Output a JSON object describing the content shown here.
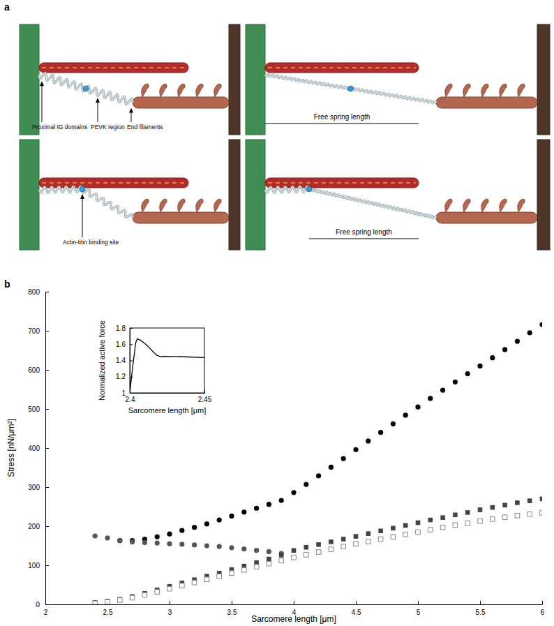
{
  "diagram": {
    "label": "a",
    "panels": [
      {
        "annotations": [
          "Proximal IG domains",
          "PEVK region",
          "End filaments"
        ]
      },
      {
        "annotations": [
          "Free spring length"
        ]
      },
      {
        "annotations": [
          "Actin-titin binding site"
        ]
      },
      {
        "annotations": [
          "Free spring length"
        ]
      }
    ]
  },
  "chart_data": [
    {
      "type": "scatter",
      "annotations": [
        "b"
      ],
      "x_label": "Sarcomere length [μm]",
      "y_label": "Stress [nN/μm²]",
      "xlim": [
        2,
        6
      ],
      "xticks": [
        2,
        2.5,
        3,
        3.5,
        4,
        4.5,
        5,
        5.5,
        6
      ],
      "ylim": [
        0,
        800
      ],
      "yticks": [
        0,
        100,
        200,
        300,
        400,
        500,
        600,
        700,
        800
      ],
      "grid": false,
      "series": [
        {
          "color": "#000000",
          "marker": "circle",
          "x": [
            2.6,
            2.7,
            2.8,
            2.9,
            3.0,
            3.1,
            3.2,
            3.3,
            3.4,
            3.5,
            3.6,
            3.7,
            3.8,
            3.9,
            4.0,
            4.1,
            4.2,
            4.3,
            4.4,
            4.5,
            4.6,
            4.7,
            4.8,
            4.9,
            5.0,
            5.1,
            5.2,
            5.3,
            5.4,
            5.5,
            5.6,
            5.7,
            5.8,
            5.9,
            6.0
          ],
          "values": [
            163,
            163,
            167,
            173,
            180,
            189,
            197,
            206,
            216,
            226,
            236,
            246,
            256,
            266,
            286,
            307,
            329,
            351,
            373,
            396,
            418,
            440,
            462,
            484,
            505,
            527,
            548,
            569,
            590,
            610,
            631,
            652,
            673,
            695,
            716
          ]
        },
        {
          "color": "#555555",
          "marker": "circle",
          "x": [
            2.4,
            2.5,
            2.6,
            2.7,
            2.8,
            2.9,
            3.0,
            3.1,
            3.2,
            3.3,
            3.4,
            3.5,
            3.6,
            3.7,
            3.8,
            3.9
          ],
          "values": [
            175,
            170,
            163,
            160,
            158,
            157,
            155,
            154,
            152,
            150,
            148,
            145,
            142,
            138,
            135,
            130
          ]
        },
        {
          "color": "#444444",
          "marker": "square",
          "x": [
            2.4,
            2.5,
            2.6,
            2.7,
            2.8,
            2.9,
            3.0,
            3.1,
            3.2,
            3.3,
            3.4,
            3.5,
            3.6,
            3.7,
            3.8,
            3.9,
            4.0,
            4.1,
            4.2,
            4.3,
            4.4,
            4.5,
            4.6,
            4.7,
            4.8,
            4.9,
            5.0,
            5.1,
            5.2,
            5.3,
            5.4,
            5.5,
            5.6,
            5.7,
            5.8,
            5.9,
            6.0
          ],
          "values": [
            5,
            8,
            13,
            20,
            28,
            37,
            46,
            55,
            63,
            72,
            80,
            89,
            98,
            107,
            116,
            126,
            138,
            146,
            153,
            160,
            167,
            174,
            181,
            188,
            195,
            202,
            209,
            216,
            222,
            229,
            235,
            242,
            248,
            254,
            260,
            265,
            270
          ]
        },
        {
          "color": "#888888",
          "marker": "open-square",
          "x": [
            2.4,
            2.5,
            2.6,
            2.7,
            2.8,
            2.9,
            3.0,
            3.1,
            3.2,
            3.3,
            3.4,
            3.5,
            3.6,
            3.7,
            3.8,
            3.9,
            4.0,
            4.1,
            4.2,
            4.3,
            4.4,
            4.5,
            4.6,
            4.7,
            4.8,
            4.9,
            5.0,
            5.1,
            5.2,
            5.3,
            5.4,
            5.5,
            5.6,
            5.7,
            5.8,
            5.9,
            6.0
          ],
          "values": [
            3,
            6,
            11,
            17,
            24,
            32,
            40,
            48,
            56,
            64,
            72,
            80,
            88,
            96,
            104,
            112,
            120,
            127,
            134,
            141,
            148,
            155,
            161,
            167,
            173,
            179,
            185,
            191,
            197,
            203,
            208,
            213,
            218,
            223,
            227,
            231,
            234
          ]
        }
      ]
    },
    {
      "type": "line",
      "x_label": "Sarcomere length [μm]",
      "y_label": "Normalized active force",
      "xlim": [
        2.4,
        2.45
      ],
      "xticks": [
        2.4,
        2.45
      ],
      "ylim": [
        1,
        1.8
      ],
      "yticks": [
        1,
        1.2,
        1.4,
        1.6,
        1.8
      ],
      "color": "#000000",
      "x": [
        2.4,
        2.402,
        2.404,
        2.405,
        2.407,
        2.41,
        2.413,
        2.416,
        2.418,
        2.42,
        2.421,
        2.423,
        2.43,
        2.44,
        2.45
      ],
      "values": [
        1,
        1.33,
        1.62,
        1.665,
        1.65,
        1.61,
        1.56,
        1.5,
        1.465,
        1.45,
        1.445,
        1.45,
        1.448,
        1.443,
        1.435
      ]
    }
  ]
}
